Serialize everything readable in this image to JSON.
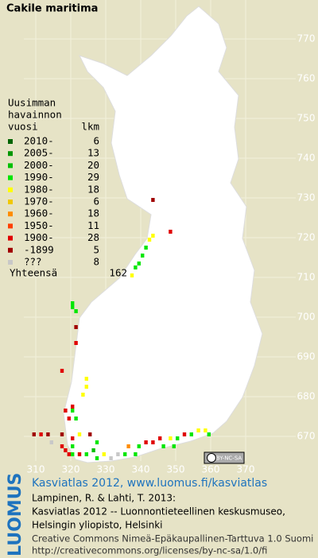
{
  "map": {
    "title": "Cakile maritima",
    "legend": {
      "header": [
        "Uusimman",
        "havainnon",
        "vuosi"
      ],
      "count_header": "lkm",
      "classes": [
        {
          "label": "2010-",
          "count": 6,
          "color": "#006400"
        },
        {
          "label": "2005-",
          "count": 13,
          "color": "#009600"
        },
        {
          "label": "2000-",
          "count": 20,
          "color": "#00c000"
        },
        {
          "label": "1990-",
          "count": 29,
          "color": "#00e600"
        },
        {
          "label": "1980-",
          "count": 18,
          "color": "#ffff00"
        },
        {
          "label": "1970-",
          "count": 6,
          "color": "#f0c800"
        },
        {
          "label": "1960-",
          "count": 18,
          "color": "#ff8c00"
        },
        {
          "label": "1950-",
          "count": 11,
          "color": "#ff4000"
        },
        {
          "label": "1900-",
          "count": 28,
          "color": "#e00000"
        },
        {
          "label": "-1899",
          "count": 5,
          "color": "#a00000"
        },
        {
          "label": "???",
          "count": 8,
          "color": "#c8c8c8"
        }
      ],
      "total_label": "Yhteensä",
      "total": 162
    },
    "xlim": [
      310,
      370
    ],
    "ylim": [
      670,
      770
    ],
    "xticks": [
      310,
      320,
      330,
      340,
      350,
      360,
      370
    ],
    "yticks": [
      670,
      680,
      690,
      700,
      710,
      720,
      730,
      740,
      750,
      760,
      770
    ],
    "squares": [
      {
        "e": 343,
        "n": 729,
        "c": 9
      },
      {
        "e": 348,
        "n": 721,
        "c": 8
      },
      {
        "e": 343,
        "n": 720,
        "c": 4
      },
      {
        "e": 342,
        "n": 719,
        "c": 4
      },
      {
        "e": 341,
        "n": 717,
        "c": 3
      },
      {
        "e": 340,
        "n": 715,
        "c": 3
      },
      {
        "e": 339,
        "n": 713,
        "c": 3
      },
      {
        "e": 338,
        "n": 712,
        "c": 3
      },
      {
        "e": 337,
        "n": 710,
        "c": 4
      },
      {
        "e": 320,
        "n": 703,
        "c": 3
      },
      {
        "e": 320,
        "n": 702,
        "c": 3
      },
      {
        "e": 321,
        "n": 701,
        "c": 3
      },
      {
        "e": 321,
        "n": 697,
        "c": 9
      },
      {
        "e": 321,
        "n": 693,
        "c": 8
      },
      {
        "e": 317,
        "n": 686,
        "c": 8
      },
      {
        "e": 324,
        "n": 684,
        "c": 4
      },
      {
        "e": 324,
        "n": 682,
        "c": 4
      },
      {
        "e": 323,
        "n": 680,
        "c": 4
      },
      {
        "e": 320,
        "n": 677,
        "c": 8
      },
      {
        "e": 320,
        "n": 676,
        "c": 3
      },
      {
        "e": 318,
        "n": 676,
        "c": 8
      },
      {
        "e": 319,
        "n": 674,
        "c": 8
      },
      {
        "e": 321,
        "n": 674,
        "c": 3
      },
      {
        "e": 309,
        "n": 670,
        "c": 9
      },
      {
        "e": 311,
        "n": 670,
        "c": 8
      },
      {
        "e": 313,
        "n": 670,
        "c": 9
      },
      {
        "e": 317,
        "n": 670,
        "c": 9
      },
      {
        "e": 320,
        "n": 669,
        "c": 8
      },
      {
        "e": 322,
        "n": 670,
        "c": 4
      },
      {
        "e": 325,
        "n": 670,
        "c": 9
      },
      {
        "e": 327,
        "n": 668,
        "c": 3
      },
      {
        "e": 317,
        "n": 667,
        "c": 8
      },
      {
        "e": 318,
        "n": 666,
        "c": 8
      },
      {
        "e": 320,
        "n": 665,
        "c": 3
      },
      {
        "e": 322,
        "n": 665,
        "c": 8
      },
      {
        "e": 324,
        "n": 665,
        "c": 3
      },
      {
        "e": 327,
        "n": 664,
        "c": 3
      },
      {
        "e": 329,
        "n": 665,
        "c": 4
      },
      {
        "e": 331,
        "n": 664,
        "c": 10
      },
      {
        "e": 335,
        "n": 665,
        "c": 3
      },
      {
        "e": 338,
        "n": 665,
        "c": 3
      },
      {
        "e": 339,
        "n": 667,
        "c": 3
      },
      {
        "e": 341,
        "n": 668,
        "c": 8
      },
      {
        "e": 343,
        "n": 668,
        "c": 8
      },
      {
        "e": 345,
        "n": 669,
        "c": 8
      },
      {
        "e": 348,
        "n": 669,
        "c": 4
      },
      {
        "e": 350,
        "n": 669,
        "c": 3
      },
      {
        "e": 352,
        "n": 670,
        "c": 8
      },
      {
        "e": 354,
        "n": 670,
        "c": 3
      },
      {
        "e": 356,
        "n": 671,
        "c": 4
      },
      {
        "e": 358,
        "n": 671,
        "c": 4
      },
      {
        "e": 359,
        "n": 670,
        "c": 3
      },
      {
        "e": 349,
        "n": 667,
        "c": 3
      },
      {
        "e": 346,
        "n": 667,
        "c": 3
      },
      {
        "e": 320,
        "n": 667,
        "c": 3
      },
      {
        "e": 319,
        "n": 665,
        "c": 8
      },
      {
        "e": 333,
        "n": 665,
        "c": 10
      },
      {
        "e": 314,
        "n": 668,
        "c": 10
      },
      {
        "e": 336,
        "n": 667,
        "c": 6
      },
      {
        "e": 326,
        "n": 666,
        "c": 2
      }
    ],
    "license_badge": "BY-NC-SA"
  },
  "footer": {
    "logo": "LUOMUS",
    "link": "Kasviatlas 2012, www.luomus.fi/kasviatlas",
    "lines": [
      "Lampinen, R. & Lahti, T. 2013:",
      "Kasviatlas 2012 -- Luonnontieteellinen keskusmuseo,",
      "Helsingin yliopisto, Helsinki"
    ],
    "license": "Creative Commons Nimeä-Epäkaupallinen-Tarttuva 1.0 Suomi",
    "url": "http://creativecommons.org/licenses/by-nc-sa/1.0/fi"
  }
}
